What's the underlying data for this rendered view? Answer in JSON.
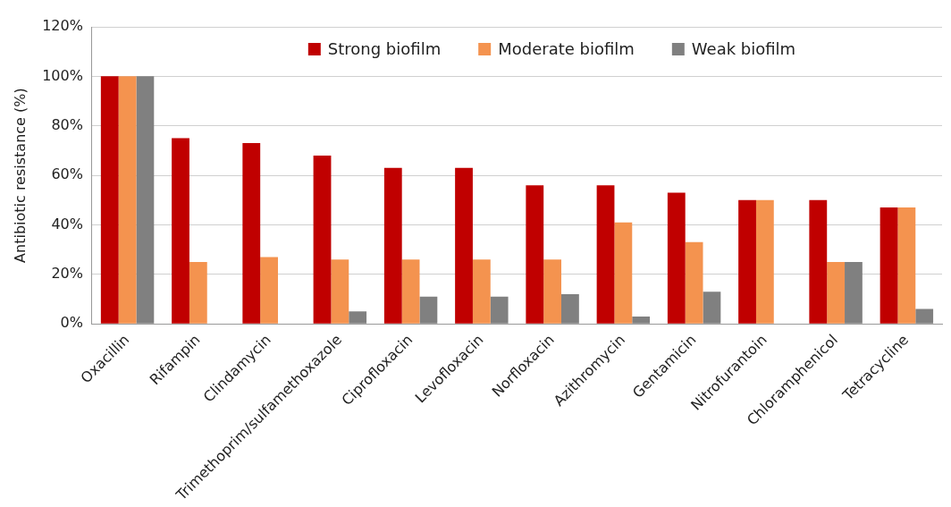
{
  "chart_data": {
    "type": "bar",
    "ylabel": "Antibiotic resistance (%)",
    "categories": [
      "Oxacillin",
      "Rifampin",
      "Clindamycin",
      "Trimethoprim/sulfamethoxazole",
      "Ciprofloxacin",
      "Levofloxacin",
      "Norfloxacin",
      "Azithromycin",
      "Gentamicin",
      "Nitrofurantoin",
      "Chloramphenicol",
      "Tetracycline"
    ],
    "series": [
      {
        "name": "Strong biofilm",
        "color": "#c00000",
        "values": [
          100,
          75,
          73,
          68,
          63,
          63,
          56,
          56,
          53,
          50,
          50,
          47
        ]
      },
      {
        "name": "Moderate biofilm",
        "color": "#f4934f",
        "values": [
          100,
          25,
          27,
          26,
          26,
          26,
          26,
          41,
          33,
          50,
          25,
          47
        ]
      },
      {
        "name": "Weak biofilm",
        "color": "#808080",
        "values": [
          100,
          0,
          0,
          5,
          11,
          11,
          12,
          3,
          13,
          0,
          25,
          6
        ]
      }
    ],
    "ylim": [
      0,
      120
    ],
    "yticks": [
      {
        "value": 0,
        "label": "0%"
      },
      {
        "value": 20,
        "label": "20%"
      },
      {
        "value": 40,
        "label": "40%"
      },
      {
        "value": 60,
        "label": "60%"
      },
      {
        "value": 80,
        "label": "80%"
      },
      {
        "value": 100,
        "label": "100%"
      },
      {
        "value": 120,
        "label": "120%"
      }
    ],
    "grid": "y",
    "legend": "top"
  }
}
